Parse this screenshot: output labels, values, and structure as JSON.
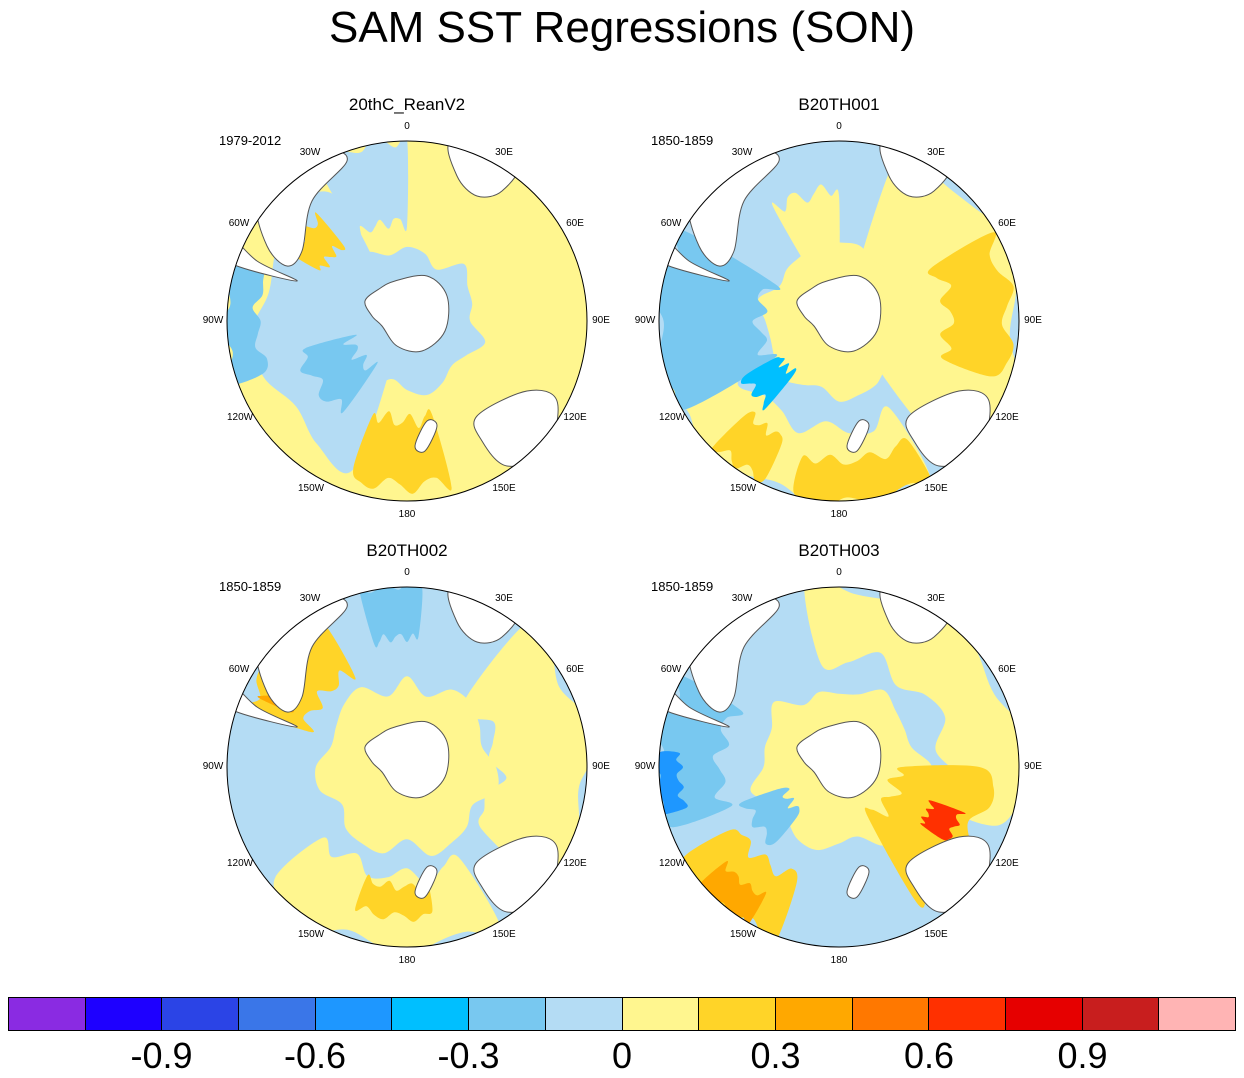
{
  "title": "SAM SST Regressions (SON)",
  "panels": [
    {
      "title": "20thC_ReanV2",
      "period": "1979-2012"
    },
    {
      "title": "B20TH001",
      "period": "1850-1859"
    },
    {
      "title": "B20TH002",
      "period": "1850-1859"
    },
    {
      "title": "B20TH003",
      "period": "1850-1859"
    }
  ],
  "longitude_labels": [
    "0",
    "30E",
    "60E",
    "90E",
    "120E",
    "150E",
    "180",
    "150W",
    "120W",
    "90W",
    "60W",
    "30W"
  ],
  "colorbar": {
    "colors": [
      "#8a2be2",
      "#1e00ff",
      "#2b44e6",
      "#3a76e8",
      "#1e97ff",
      "#00bfff",
      "#78c8f0",
      "#b4dcf4",
      "#fff68f",
      "#ffd428",
      "#ffa800",
      "#ff7800",
      "#ff3000",
      "#e60000",
      "#c81e1e",
      "#ffb4b4"
    ],
    "tick_labels": [
      "-0.9",
      "-0.6",
      "-0.3",
      "0",
      "0.3",
      "0.6",
      "0.9"
    ]
  }
}
